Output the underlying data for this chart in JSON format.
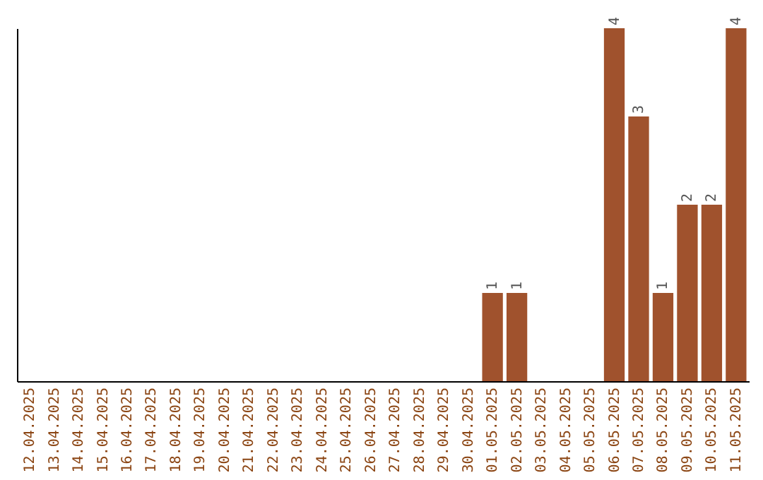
{
  "chart_data": {
    "type": "bar",
    "categories": [
      "12.04.2025",
      "13.04.2025",
      "14.04.2025",
      "15.04.2025",
      "16.04.2025",
      "17.04.2025",
      "18.04.2025",
      "19.04.2025",
      "20.04.2025",
      "21.04.2025",
      "22.04.2025",
      "23.04.2025",
      "24.04.2025",
      "25.04.2025",
      "26.04.2025",
      "27.04.2025",
      "28.04.2025",
      "29.04.2025",
      "30.04.2025",
      "01.05.2025",
      "02.05.2025",
      "03.05.2025",
      "04.05.2025",
      "05.05.2025",
      "06.05.2025",
      "07.05.2025",
      "08.05.2025",
      "09.05.2025",
      "10.05.2025",
      "11.05.2025"
    ],
    "values": [
      null,
      null,
      null,
      null,
      null,
      null,
      null,
      null,
      null,
      null,
      null,
      null,
      null,
      null,
      null,
      null,
      null,
      null,
      null,
      1,
      1,
      null,
      null,
      null,
      4,
      3,
      1,
      2,
      2,
      4
    ],
    "color": "#a0522d",
    "data_labels": true
  }
}
